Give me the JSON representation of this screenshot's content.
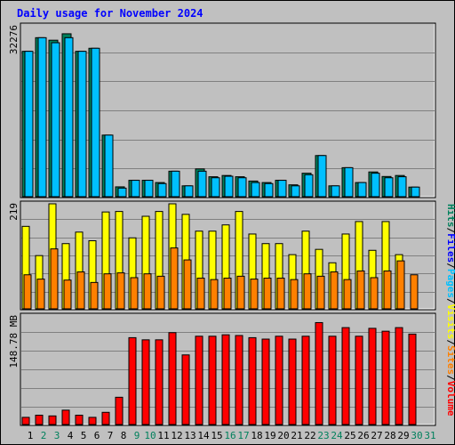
{
  "title": "Daily usage for November 2024",
  "colors": {
    "background": "#C0C0C0",
    "hits": "#00805C",
    "files": "#0000FF",
    "pages": "#00C0FF",
    "visits": "#FFFF00",
    "sites": "#FF8000",
    "volume": "#FF0000",
    "title": "#0000FF",
    "weekend_day": "#00805C"
  },
  "chart_data": [
    {
      "type": "bar",
      "panel": "hits-files",
      "max_label": "32276",
      "ylim": [
        0,
        33500
      ],
      "categories": [
        "1",
        "2",
        "3",
        "4",
        "5",
        "6",
        "7",
        "8",
        "9",
        "10",
        "11",
        "12",
        "13",
        "14",
        "15",
        "16",
        "17",
        "18",
        "19",
        "20",
        "21",
        "22",
        "23",
        "24",
        "25",
        "26",
        "27",
        "28",
        "29",
        "30",
        "31"
      ],
      "series": [
        {
          "name": "Hits",
          "values": [
            28800,
            31500,
            31000,
            32276,
            28800,
            29400,
            12200,
            1950,
            3250,
            3250,
            2800,
            5050,
            2150,
            5500,
            3950,
            4200,
            3950,
            3100,
            2800,
            3250,
            2350,
            4650,
            8150,
            2150,
            5750,
            2800,
            4900,
            4000,
            4200,
            1900,
            0
          ]
        },
        {
          "name": "Files",
          "values": [
            28800,
            31500,
            30500,
            31500,
            28800,
            29400,
            12200,
            1700,
            3250,
            3250,
            2600,
            5050,
            2150,
            5050,
            3750,
            4050,
            3750,
            2800,
            2600,
            3250,
            2150,
            4350,
            8150,
            2150,
            5750,
            2800,
            4650,
            3750,
            3950,
            1900,
            0
          ]
        }
      ]
    },
    {
      "type": "bar",
      "panel": "visits-sites",
      "max_label": "219",
      "ylim": [
        0,
        219
      ],
      "categories": [
        "1",
        "2",
        "3",
        "4",
        "5",
        "6",
        "7",
        "8",
        "9",
        "10",
        "11",
        "12",
        "13",
        "14",
        "15",
        "16",
        "17",
        "18",
        "19",
        "20",
        "21",
        "22",
        "23",
        "24",
        "25",
        "26",
        "27",
        "28",
        "29",
        "30",
        "31"
      ],
      "series": [
        {
          "name": "Visits",
          "values": [
            172,
            111,
            219,
            136,
            160,
            142,
            202,
            203,
            148,
            193,
            203,
            219,
            197,
            162,
            162,
            175,
            203,
            156,
            136,
            136,
            113,
            162,
            124,
            96,
            156,
            182,
            122,
            182,
            113,
            0,
            0
          ]
        },
        {
          "name": "Sites",
          "values": [
            71,
            62,
            125,
            60,
            77,
            55,
            73,
            75,
            65,
            73,
            68,
            127,
            102,
            64,
            61,
            64,
            68,
            62,
            64,
            64,
            61,
            73,
            68,
            77,
            61,
            79,
            65,
            79,
            100,
            71,
            0
          ]
        }
      ]
    },
    {
      "type": "bar",
      "panel": "volume",
      "max_label": "148.78 MB",
      "ylim": [
        0,
        148.78
      ],
      "categories": [
        "1",
        "2",
        "3",
        "4",
        "5",
        "6",
        "7",
        "8",
        "9",
        "10",
        "11",
        "12",
        "13",
        "14",
        "15",
        "16",
        "17",
        "18",
        "19",
        "20",
        "21",
        "22",
        "23",
        "24",
        "25",
        "26",
        "27",
        "28",
        "29",
        "30",
        "31"
      ],
      "series": [
        {
          "name": "Volume",
          "values": [
            10,
            13,
            12,
            20,
            13,
            10,
            17,
            38,
            121,
            118,
            118,
            128,
            97,
            123,
            123,
            125,
            124,
            121,
            119,
            123,
            119,
            123,
            142,
            123,
            135,
            123,
            134,
            130,
            135,
            126,
            0
          ]
        }
      ]
    }
  ],
  "legend": [
    "Hits",
    "/",
    "Files",
    "/",
    "Pages",
    "/",
    "Visits",
    "/",
    "Sites",
    "/",
    "Volume"
  ],
  "weekend_days": [
    "2",
    "3",
    "9",
    "10",
    "16",
    "17",
    "23",
    "24",
    "30",
    "31"
  ]
}
